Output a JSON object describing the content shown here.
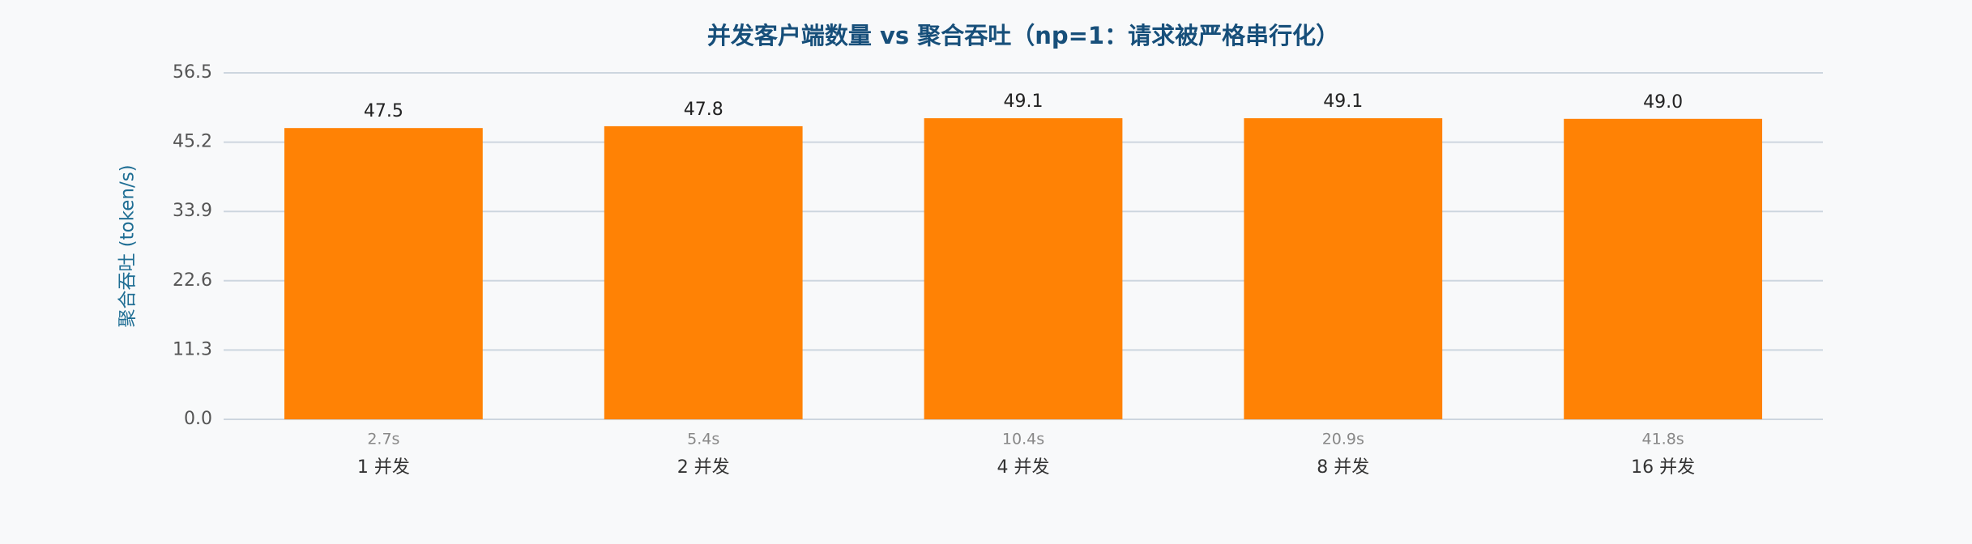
{
  "chart_data": {
    "type": "bar",
    "title": "并发客户端数量 vs 聚合吞吐（np=1：请求被严格串行化）",
    "ylabel": "聚合吞吐 (token/s)",
    "categories": [
      "1 并发",
      "2 并发",
      "4 并发",
      "8 并发",
      "16 并发"
    ],
    "sublabels": [
      "2.7s",
      "5.4s",
      "10.4s",
      "20.9s",
      "41.8s"
    ],
    "values": [
      47.5,
      47.8,
      49.1,
      49.1,
      49.0
    ],
    "value_labels": [
      "47.5",
      "47.8",
      "49.1",
      "49.1",
      "49.0"
    ],
    "color": "#ff8205",
    "ylim": [
      0,
      56.5
    ],
    "yticks": [
      {
        "value": 0,
        "label": "0.0"
      },
      11.3,
      22.6,
      33.9,
      45.2,
      56.5
    ],
    "grid": true
  }
}
